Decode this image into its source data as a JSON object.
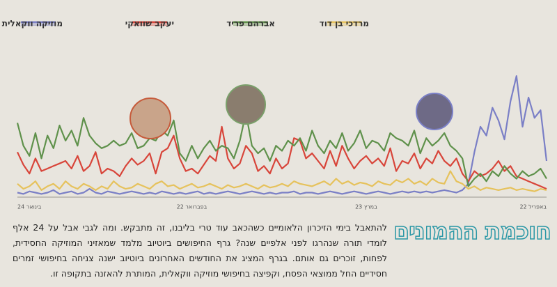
{
  "chart_data": {
    "type": "line",
    "categories": [
      "24 בינואר",
      null,
      null,
      null,
      null,
      null,
      null,
      null,
      null,
      null,
      null,
      null,
      null,
      null,
      null,
      null,
      null,
      null,
      null,
      null,
      null,
      null,
      null,
      null,
      null,
      null,
      null,
      null,
      null,
      "22 בפברואר",
      null,
      null,
      null,
      null,
      null,
      null,
      null,
      null,
      null,
      null,
      null,
      null,
      null,
      null,
      null,
      null,
      null,
      null,
      null,
      null,
      null,
      null,
      null,
      null,
      null,
      null,
      null,
      null,
      "23 במרץ",
      null,
      null,
      null,
      null,
      null,
      null,
      null,
      null,
      null,
      null,
      null,
      null,
      null,
      null,
      null,
      null,
      null,
      null,
      null,
      null,
      null,
      null,
      null,
      null,
      null,
      null,
      null,
      null,
      null,
      "22 באפריל"
    ],
    "ylim": [
      0,
      100
    ],
    "series": [
      {
        "name": "מוזיקה ווקאלית",
        "color": "#7a7fc6",
        "values": [
          3,
          2,
          4,
          3,
          2,
          3,
          5,
          2,
          3,
          4,
          2,
          3,
          6,
          3,
          2,
          4,
          3,
          2,
          3,
          4,
          3,
          2,
          3,
          2,
          4,
          3,
          2,
          3,
          2,
          3,
          4,
          2,
          3,
          2,
          3,
          4,
          3,
          2,
          3,
          4,
          3,
          2,
          3,
          2,
          3,
          3,
          4,
          2,
          3,
          3,
          2,
          3,
          4,
          3,
          2,
          3,
          4,
          3,
          2,
          3,
          4,
          3,
          2,
          3,
          4,
          3,
          4,
          3,
          4,
          3,
          4,
          5,
          4,
          3,
          5,
          10,
          35,
          55,
          48,
          70,
          60,
          45,
          75,
          95,
          55,
          78,
          62,
          68,
          28
        ]
      },
      {
        "name": "יעקב שוואקי",
        "color": "#d8453a",
        "values": [
          35,
          25,
          18,
          30,
          20,
          22,
          24,
          26,
          28,
          22,
          32,
          20,
          24,
          35,
          18,
          22,
          20,
          16,
          24,
          30,
          25,
          28,
          34,
          18,
          35,
          38,
          48,
          30,
          20,
          22,
          18,
          25,
          32,
          28,
          55,
          30,
          22,
          26,
          40,
          34,
          20,
          24,
          18,
          30,
          22,
          26,
          46,
          44,
          30,
          34,
          28,
          22,
          36,
          24,
          40,
          30,
          22,
          28,
          32,
          26,
          30,
          24,
          38,
          20,
          28,
          26,
          34,
          22,
          30,
          26,
          36,
          28,
          24,
          30,
          18,
          12,
          20,
          16,
          18,
          22,
          28,
          20,
          24,
          16,
          14,
          12,
          10,
          8,
          6
        ]
      },
      {
        "name": "אברהם פריד",
        "color": "#5f914b",
        "values": [
          58,
          40,
          32,
          50,
          30,
          48,
          38,
          56,
          44,
          52,
          40,
          62,
          48,
          42,
          38,
          40,
          44,
          40,
          42,
          50,
          38,
          40,
          46,
          44,
          52,
          48,
          60,
          34,
          28,
          40,
          30,
          38,
          44,
          36,
          40,
          38,
          30,
          44,
          66,
          40,
          34,
          38,
          28,
          40,
          36,
          44,
          40,
          46,
          36,
          52,
          40,
          34,
          44,
          38,
          50,
          36,
          42,
          52,
          38,
          44,
          42,
          36,
          50,
          46,
          44,
          40,
          52,
          34,
          46,
          40,
          44,
          50,
          40,
          36,
          30,
          8,
          14,
          18,
          12,
          20,
          16,
          24,
          18,
          14,
          20,
          16,
          18,
          22,
          14
        ]
      },
      {
        "name": "מרדכי בן דוד",
        "color": "#e6c25c",
        "values": [
          10,
          6,
          8,
          12,
          5,
          8,
          10,
          6,
          12,
          8,
          6,
          10,
          8,
          5,
          8,
          6,
          12,
          8,
          6,
          7,
          10,
          8,
          6,
          10,
          12,
          8,
          9,
          6,
          8,
          10,
          7,
          8,
          10,
          8,
          6,
          9,
          7,
          8,
          10,
          8,
          6,
          9,
          7,
          8,
          10,
          8,
          12,
          10,
          9,
          8,
          10,
          12,
          9,
          14,
          10,
          12,
          9,
          11,
          10,
          8,
          12,
          10,
          9,
          13,
          11,
          14,
          10,
          12,
          9,
          14,
          11,
          10,
          20,
          12,
          10,
          6,
          8,
          5,
          7,
          6,
          5,
          6,
          7,
          5,
          6,
          5,
          4,
          6,
          5
        ]
      }
    ]
  },
  "headline": "חוכמת ההמונים",
  "body": "להתאבל בימי הזיכרון הלאומיים כשהכאב עוד טרי בליבנו, זה מתבקש. ומה לגבי אבל על 24 אלף לומדי תורה שנהרגו לפני אלפיים שנה? גרף החיפושים ביוטיוב מלמד שמאזיני המוזיקה החסידית, לפחות, זוכרים גם אותם. בגרף המציג את החודשים האחרונים ביוטיוב ישנה צניחה בחיפושי זמרים חסידיים החל ממוצאי הפסח, וקפיצה בחיפושי מוזיקה ווקאלית, המותרת להאזנה בתקופה זו."
}
